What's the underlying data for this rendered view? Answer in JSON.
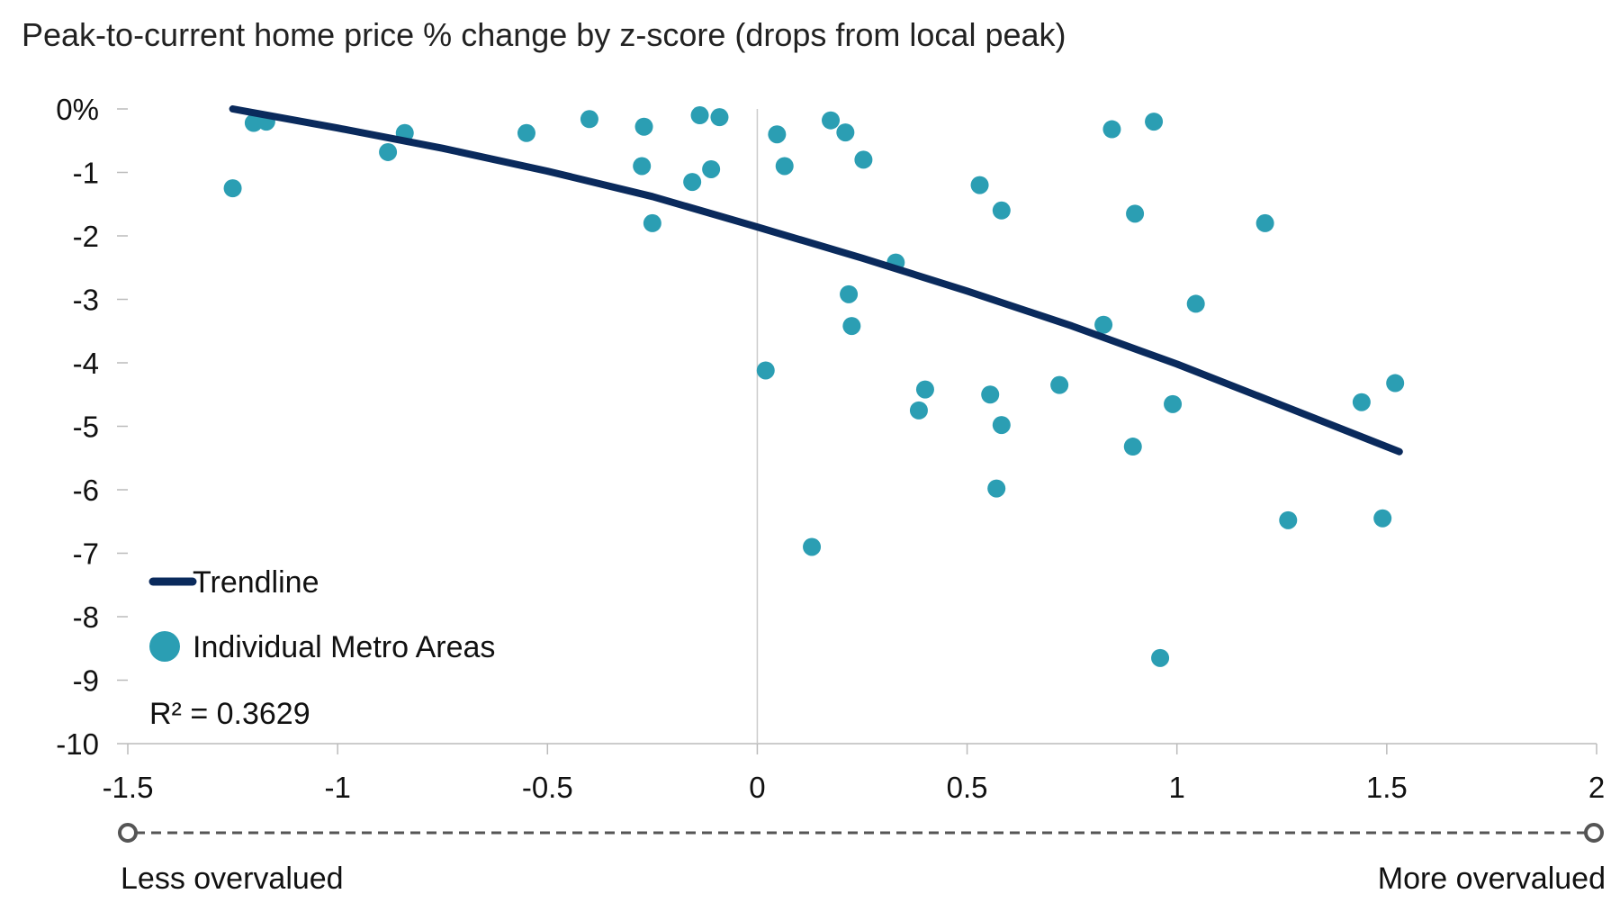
{
  "chart_data": {
    "type": "scatter",
    "title": "Peak-to-current home price % change by z-score (drops from local peak)",
    "xlim": [
      -1.5,
      2
    ],
    "ylim": [
      -10,
      0
    ],
    "x_ticks": [
      {
        "value": -1.5,
        "label": "-1.5"
      },
      {
        "value": -1,
        "label": "-1"
      },
      {
        "value": -0.5,
        "label": "-0.5"
      },
      {
        "value": 0,
        "label": "0"
      },
      {
        "value": 0.5,
        "label": "0.5"
      },
      {
        "value": 1,
        "label": "1"
      },
      {
        "value": 1.5,
        "label": "1.5"
      },
      {
        "value": 2,
        "label": "2"
      }
    ],
    "y_ticks": [
      {
        "value": 0,
        "label": "0%"
      },
      {
        "value": -1,
        "label": "-1"
      },
      {
        "value": -2,
        "label": "-2"
      },
      {
        "value": -3,
        "label": "-3"
      },
      {
        "value": -4,
        "label": "-4"
      },
      {
        "value": -5,
        "label": "-5"
      },
      {
        "value": -6,
        "label": "-6"
      },
      {
        "value": -7,
        "label": "-7"
      },
      {
        "value": -8,
        "label": "-8"
      },
      {
        "value": -9,
        "label": "-9"
      },
      {
        "value": -10,
        "label": "-10"
      }
    ],
    "grid": false,
    "legend_position": "bottom-left",
    "series": [
      {
        "name": "Individual Metro Areas",
        "kind": "points",
        "color": "#2b9eb3",
        "points": [
          {
            "x": -1.25,
            "y": -1.25
          },
          {
            "x": -1.2,
            "y": -0.22
          },
          {
            "x": -1.17,
            "y": -0.2
          },
          {
            "x": -0.88,
            "y": -0.68
          },
          {
            "x": -0.84,
            "y": -0.38
          },
          {
            "x": -0.55,
            "y": -0.38
          },
          {
            "x": -0.4,
            "y": -0.16
          },
          {
            "x": -0.27,
            "y": -0.28
          },
          {
            "x": -0.275,
            "y": -0.9
          },
          {
            "x": -0.25,
            "y": -1.8
          },
          {
            "x": -0.155,
            "y": -1.15
          },
          {
            "x": -0.137,
            "y": -0.1
          },
          {
            "x": -0.11,
            "y": -0.95
          },
          {
            "x": -0.09,
            "y": -0.13
          },
          {
            "x": 0.02,
            "y": -4.12
          },
          {
            "x": 0.047,
            "y": -0.4
          },
          {
            "x": 0.065,
            "y": -0.9
          },
          {
            "x": 0.13,
            "y": -6.9
          },
          {
            "x": 0.175,
            "y": -0.18
          },
          {
            "x": 0.21,
            "y": -0.37
          },
          {
            "x": 0.218,
            "y": -2.92
          },
          {
            "x": 0.225,
            "y": -3.42
          },
          {
            "x": 0.253,
            "y": -0.8
          },
          {
            "x": 0.33,
            "y": -2.42
          },
          {
            "x": 0.385,
            "y": -4.75
          },
          {
            "x": 0.4,
            "y": -4.42
          },
          {
            "x": 0.53,
            "y": -1.2
          },
          {
            "x": 0.555,
            "y": -4.5
          },
          {
            "x": 0.57,
            "y": -5.98
          },
          {
            "x": 0.582,
            "y": -1.6
          },
          {
            "x": 0.582,
            "y": -4.98
          },
          {
            "x": 0.72,
            "y": -4.35
          },
          {
            "x": 0.825,
            "y": -3.4
          },
          {
            "x": 0.845,
            "y": -0.32
          },
          {
            "x": 0.895,
            "y": -5.32
          },
          {
            "x": 0.9,
            "y": -1.65
          },
          {
            "x": 0.945,
            "y": -0.2
          },
          {
            "x": 0.96,
            "y": -8.65
          },
          {
            "x": 0.99,
            "y": -4.65
          },
          {
            "x": 1.045,
            "y": -3.07
          },
          {
            "x": 1.21,
            "y": -1.8
          },
          {
            "x": 1.265,
            "y": -6.48
          },
          {
            "x": 1.44,
            "y": -4.62
          },
          {
            "x": 1.49,
            "y": -6.45
          },
          {
            "x": 1.52,
            "y": -4.32
          }
        ]
      },
      {
        "name": "Trendline",
        "kind": "line",
        "color": "#0a2a5c",
        "points": [
          {
            "x": -1.25,
            "y": 0.0
          },
          {
            "x": -1.0,
            "y": -0.3
          },
          {
            "x": -0.75,
            "y": -0.62
          },
          {
            "x": -0.5,
            "y": -0.98
          },
          {
            "x": -0.25,
            "y": -1.38
          },
          {
            "x": 0.0,
            "y": -1.86
          },
          {
            "x": 0.25,
            "y": -2.35
          },
          {
            "x": 0.5,
            "y": -2.87
          },
          {
            "x": 0.75,
            "y": -3.42
          },
          {
            "x": 1.0,
            "y": -4.02
          },
          {
            "x": 1.25,
            "y": -4.67
          },
          {
            "x": 1.53,
            "y": -5.4
          }
        ]
      }
    ],
    "annotation": "R² = 0.3629",
    "scale_left_label": "Less overvalued",
    "scale_right_label": "More overvalued"
  }
}
